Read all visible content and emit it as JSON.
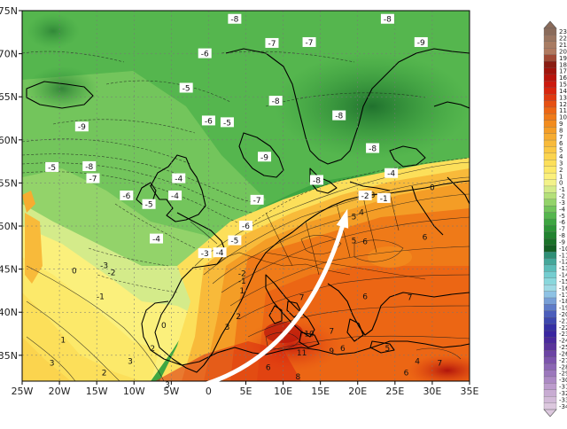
{
  "map": {
    "lat_ticks": [
      "75N",
      "70N",
      "65N",
      "60N",
      "55N",
      "50N",
      "45N",
      "40N",
      "35N"
    ],
    "lon_ticks": [
      "25W",
      "20W",
      "15W",
      "10W",
      "5W",
      "0",
      "5E",
      "10E",
      "15E",
      "20E",
      "25E",
      "30E",
      "35E"
    ],
    "lat_range": [
      32,
      75
    ],
    "lon_range": [
      -25,
      35
    ],
    "contour_labels_boxed": [
      {
        "text": "-8",
        "lon": 3.5,
        "lat": 74
      },
      {
        "text": "-8",
        "lon": 24,
        "lat": 74
      },
      {
        "text": "-7",
        "lon": 8.5,
        "lat": 71.2
      },
      {
        "text": "-7",
        "lon": 13.5,
        "lat": 71.3
      },
      {
        "text": "-9",
        "lon": 28.5,
        "lat": 71.3
      },
      {
        "text": "-6",
        "lon": -0.5,
        "lat": 70
      },
      {
        "text": "-5",
        "lon": -3,
        "lat": 66
      },
      {
        "text": "-8",
        "lon": 9,
        "lat": 64.5
      },
      {
        "text": "-6",
        "lon": 0,
        "lat": 62.2
      },
      {
        "text": "-5",
        "lon": 2.5,
        "lat": 62
      },
      {
        "text": "-8",
        "lon": 17.5,
        "lat": 62.8
      },
      {
        "text": "-9",
        "lon": -17,
        "lat": 61.5
      },
      {
        "text": "-8",
        "lon": 22,
        "lat": 59
      },
      {
        "text": "-9",
        "lon": 7.5,
        "lat": 58
      },
      {
        "text": "-8",
        "lon": -16,
        "lat": 56.9
      },
      {
        "text": "-7",
        "lon": -15.5,
        "lat": 55.5
      },
      {
        "text": "-5",
        "lon": -21,
        "lat": 56.8
      },
      {
        "text": "-4",
        "lon": -4,
        "lat": 55.5
      },
      {
        "text": "-8",
        "lon": 14.5,
        "lat": 55.3
      },
      {
        "text": "-4",
        "lon": 24.5,
        "lat": 56.1
      },
      {
        "text": "-6",
        "lon": -11,
        "lat": 53.5
      },
      {
        "text": "-5",
        "lon": -8,
        "lat": 52.5
      },
      {
        "text": "-4",
        "lon": -4.5,
        "lat": 53.5
      },
      {
        "text": "-7",
        "lon": 6.5,
        "lat": 53
      },
      {
        "text": "-6",
        "lon": 5,
        "lat": 50
      },
      {
        "text": "-4",
        "lon": -7,
        "lat": 48.5
      },
      {
        "text": "-5",
        "lon": 3.5,
        "lat": 48.3
      },
      {
        "text": "-4",
        "lon": 1.5,
        "lat": 46.9
      },
      {
        "text": "-3",
        "lon": -0.5,
        "lat": 46.8
      },
      {
        "text": "-2",
        "lon": 21,
        "lat": 53.5
      },
      {
        "text": "-1",
        "lon": 23.5,
        "lat": 53.2
      }
    ],
    "contour_labels_plain": [
      {
        "text": "0",
        "lon": 30,
        "lat": 54.5
      },
      {
        "text": "3",
        "lon": 22,
        "lat": 53.6
      },
      {
        "text": "4",
        "lon": 20.5,
        "lat": 51.6
      },
      {
        "text": "5",
        "lon": 19.5,
        "lat": 51.1
      },
      {
        "text": "5",
        "lon": 19.5,
        "lat": 48.3
      },
      {
        "text": "6",
        "lon": 21,
        "lat": 48.2
      },
      {
        "text": "6",
        "lon": 29,
        "lat": 48.7
      },
      {
        "text": "0",
        "lon": -18,
        "lat": 44.8
      },
      {
        "text": "-3",
        "lon": -14,
        "lat": 45.4
      },
      {
        "text": "-2",
        "lon": -13,
        "lat": 44.6
      },
      {
        "text": "-1",
        "lon": -14.5,
        "lat": 41.8
      },
      {
        "text": "-2",
        "lon": 4.5,
        "lat": 44.5
      },
      {
        "text": "-1",
        "lon": 4.5,
        "lat": 43.6
      },
      {
        "text": "1",
        "lon": 4.5,
        "lat": 42.5
      },
      {
        "text": "2",
        "lon": 4,
        "lat": 39.5
      },
      {
        "text": "3",
        "lon": 2.5,
        "lat": 38.3
      },
      {
        "text": "7",
        "lon": 12.5,
        "lat": 41.7
      },
      {
        "text": "6",
        "lon": 21,
        "lat": 41.8
      },
      {
        "text": "7",
        "lon": 27,
        "lat": 41.7
      },
      {
        "text": "10",
        "lon": 13.5,
        "lat": 37.5
      },
      {
        "text": "7",
        "lon": 16.5,
        "lat": 37.8
      },
      {
        "text": "11",
        "lon": 12.5,
        "lat": 35.3
      },
      {
        "text": "9",
        "lon": 16.5,
        "lat": 35.5
      },
      {
        "text": "6",
        "lon": 18,
        "lat": 35.8
      },
      {
        "text": "5",
        "lon": 24,
        "lat": 35.8
      },
      {
        "text": "4",
        "lon": 28,
        "lat": 34.3
      },
      {
        "text": "7",
        "lon": 31,
        "lat": 34.1
      },
      {
        "text": "6",
        "lon": 26.5,
        "lat": 33
      },
      {
        "text": "6",
        "lon": 8,
        "lat": 33.6
      },
      {
        "text": "8",
        "lon": 12,
        "lat": 32.5
      },
      {
        "text": "1",
        "lon": -19.5,
        "lat": 36.8
      },
      {
        "text": "3",
        "lon": -21,
        "lat": 34.1
      },
      {
        "text": "2",
        "lon": -14,
        "lat": 33
      },
      {
        "text": "3",
        "lon": -10.5,
        "lat": 34.3
      },
      {
        "text": "2",
        "lon": -7.5,
        "lat": 35.8
      },
      {
        "text": "0",
        "lon": -6,
        "lat": 38.5
      },
      {
        "text": "3",
        "lon": -5.5,
        "lat": 31.6
      }
    ],
    "arrow": {
      "from": {
        "lon": -1,
        "lat": 31.5
      },
      "to": {
        "lon": 18.5,
        "lat": 51.6
      }
    }
  },
  "legend": {
    "labels": [
      "23",
      "22",
      "21",
      "20",
      "19",
      "18",
      "17",
      "16",
      "15",
      "14",
      "13",
      "12",
      "11",
      "10",
      "9",
      "8",
      "7",
      "6",
      "5",
      "4",
      "3",
      "2",
      "1",
      "0",
      "-1",
      "-2",
      "-3",
      "-4",
      "-5",
      "-6",
      "-7",
      "-8",
      "-9",
      "-10",
      "-11",
      "-12",
      "-13",
      "-14",
      "-15",
      "-16",
      "-17",
      "-18",
      "-19",
      "-20",
      "-21",
      "-22",
      "-23",
      "-24",
      "-25",
      "-26",
      "-27",
      "-28",
      "-29",
      "-30",
      "-31",
      "-32",
      "-33",
      "-34"
    ],
    "colors": [
      "#8a6b5a",
      "#9a7560",
      "#a87c63",
      "#b07a60",
      "#a04a35",
      "#8a1d12",
      "#a0140c",
      "#b8140c",
      "#cc1a0e",
      "#d8260e",
      "#e03a10",
      "#e65012",
      "#ec6614",
      "#ef7a18",
      "#f28c1e",
      "#f49d26",
      "#f6ac30",
      "#f8ba3a",
      "#fac844",
      "#fbd44e",
      "#fcdf5a",
      "#fce96a",
      "#fbf07c",
      "#f3f28a",
      "#d4eb8a",
      "#b4e07a",
      "#93d36a",
      "#73c55c",
      "#55b64e",
      "#3ea642",
      "#2e9538",
      "#228330",
      "#1a7229",
      "#145f24",
      "#2f8f76",
      "#45a79a",
      "#5cbcb8",
      "#74cdd0",
      "#8ad7dc",
      "#9ed9e4",
      "#8ec2e4",
      "#789fd6",
      "#5f7cc8",
      "#4c5ebb",
      "#3e48ae",
      "#3530a4",
      "#3a26a0",
      "#4a2a9c",
      "#5a349c",
      "#6c44a4",
      "#7c54ac",
      "#8c66b4",
      "#9c78bc",
      "#ac8ac4",
      "#bc9ccc",
      "#c8acd2",
      "#d2bad8",
      "#dcc8de"
    ]
  }
}
